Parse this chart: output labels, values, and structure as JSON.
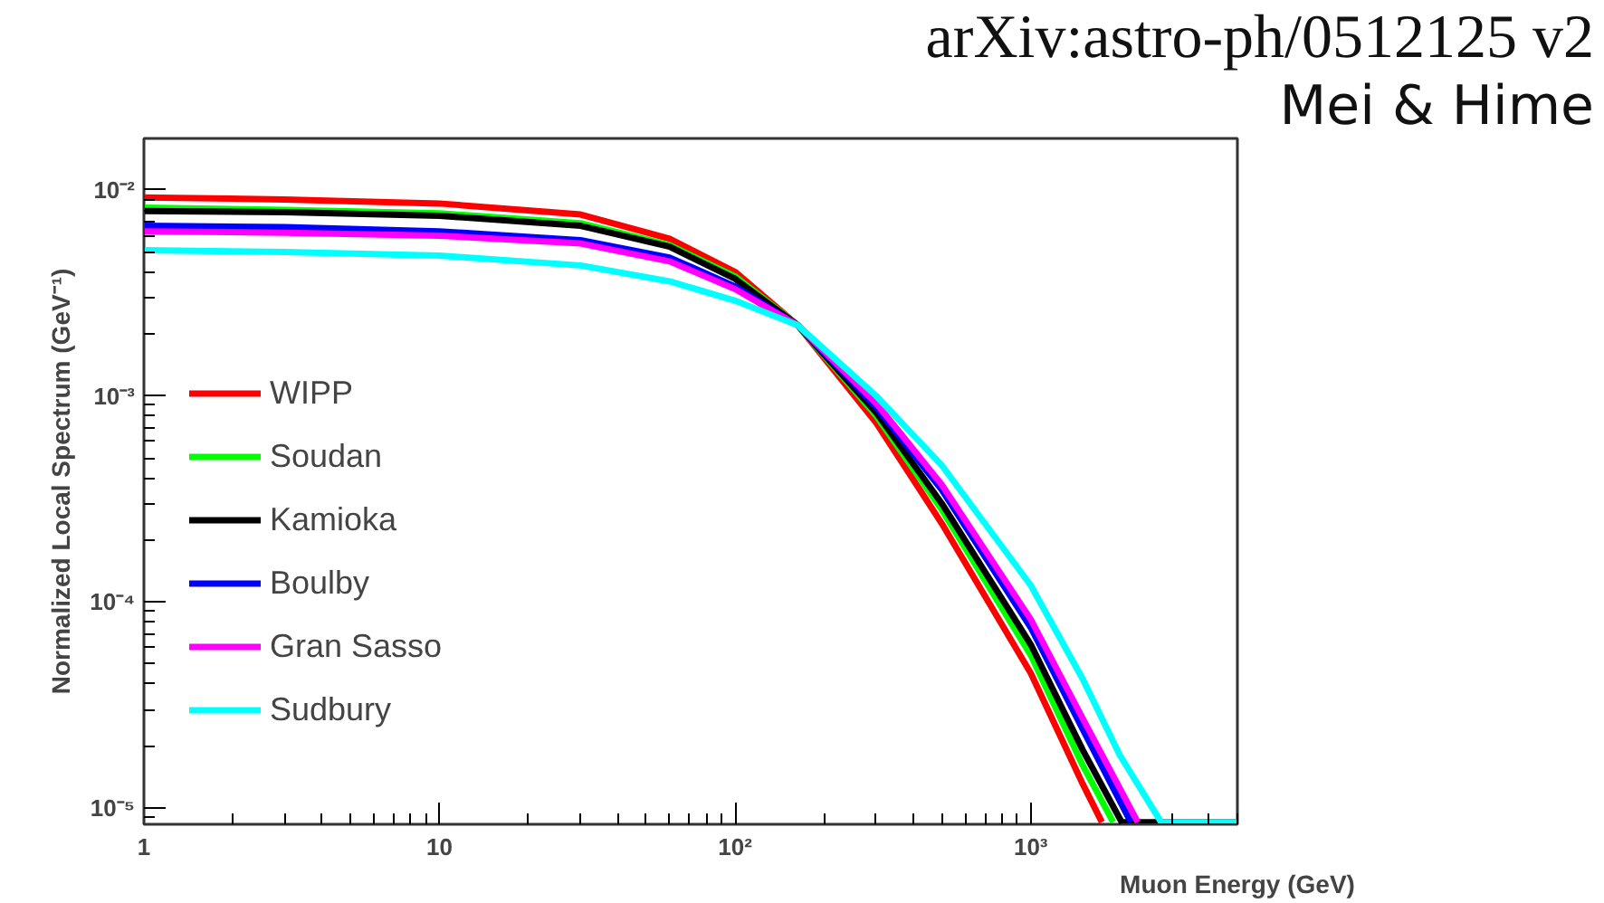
{
  "chart_data": {
    "type": "line",
    "xlabel": "Muon Energy (GeV)",
    "ylabel": "Normalized Local Spectrum (GeV⁻¹)",
    "annotations": [
      "arXiv:astro-ph/0512125 v2",
      "Mei & Hime"
    ],
    "log": "xy",
    "grid": false,
    "legend": "left",
    "marker": "none",
    "line_style": "solid",
    "xlim": [
      1,
      5000
    ],
    "ylim": [
      8.3e-06,
      0.0178
    ],
    "xticks": [
      1,
      10,
      {
        "value": 100,
        "label": "10²"
      },
      {
        "value": 1000,
        "label": "10³"
      }
    ],
    "yticks": [
      {
        "value": 1e-05,
        "label": "10⁻⁵"
      },
      {
        "value": 0.0001,
        "label": "10⁻⁴"
      },
      {
        "value": 0.001,
        "label": "10⁻³"
      },
      {
        "value": 0.01,
        "label": "10⁻²"
      }
    ],
    "series": [
      {
        "name": "WIPP",
        "color": "#ff0000",
        "x": [
          1,
          3,
          10,
          30,
          60,
          100,
          163,
          300,
          500,
          1000,
          1500,
          1740
        ],
        "values": [
          0.0092,
          0.009,
          0.0086,
          0.0076,
          0.0058,
          0.004,
          0.0022,
          0.00074,
          0.00024,
          4.5e-05,
          1.3e-05,
          8.5e-06
        ]
      },
      {
        "name": "Soudan",
        "color": "#00ff00",
        "x": [
          1,
          3,
          10,
          30,
          60,
          100,
          163,
          300,
          500,
          1000,
          1500,
          1900
        ],
        "values": [
          0.0082,
          0.008,
          0.0077,
          0.0069,
          0.0054,
          0.0038,
          0.0022,
          0.0008,
          0.00028,
          5.5e-05,
          1.6e-05,
          8.5e-06
        ]
      },
      {
        "name": "Kamioka",
        "color": "#000000",
        "x": [
          1,
          3,
          10,
          30,
          60,
          100,
          163,
          300,
          500,
          1000,
          1500,
          2030,
          5000
        ],
        "values": [
          0.0079,
          0.0078,
          0.0075,
          0.0067,
          0.0053,
          0.0037,
          0.0022,
          0.00083,
          0.0003,
          6.2e-05,
          1.9e-05,
          8.5e-06,
          8.5e-06
        ]
      },
      {
        "name": "Boulby",
        "color": "#0000ff",
        "x": [
          1,
          3,
          10,
          30,
          60,
          100,
          163,
          300,
          500,
          1000,
          1500,
          2180
        ],
        "values": [
          0.0067,
          0.0066,
          0.0063,
          0.0057,
          0.0047,
          0.0034,
          0.0022,
          0.00088,
          0.00035,
          7.5e-05,
          2.4e-05,
          8.5e-06
        ]
      },
      {
        "name": "Gran Sasso",
        "color": "#ff00ff",
        "x": [
          1,
          3,
          10,
          30,
          60,
          100,
          163,
          300,
          500,
          1000,
          1500,
          2300
        ],
        "values": [
          0.0063,
          0.0062,
          0.006,
          0.0055,
          0.0045,
          0.0033,
          0.0022,
          0.00092,
          0.00037,
          8.2e-05,
          2.7e-05,
          8.5e-06
        ]
      },
      {
        "name": "Sudbury",
        "color": "#00ffff",
        "x": [
          1,
          3,
          10,
          30,
          60,
          100,
          163,
          300,
          500,
          1000,
          1500,
          2000,
          2760,
          5000
        ],
        "values": [
          0.0051,
          0.005,
          0.0048,
          0.0043,
          0.0036,
          0.0029,
          0.0022,
          0.001,
          0.00046,
          0.00012,
          4.2e-05,
          1.8e-05,
          8.5e-06,
          8.5e-06
        ]
      }
    ]
  }
}
